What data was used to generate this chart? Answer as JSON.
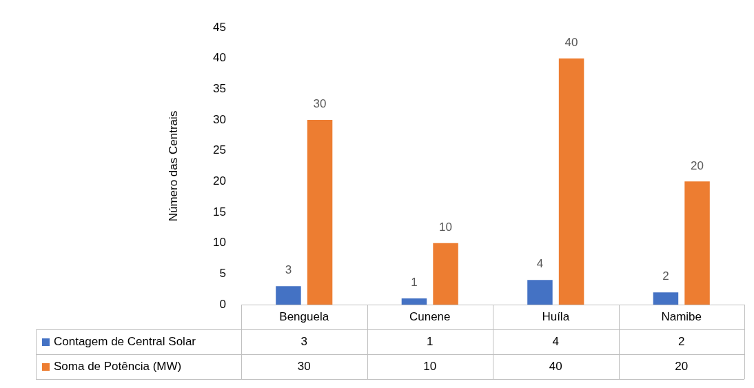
{
  "chart_data": {
    "type": "bar",
    "ylabel": "Número das Centrais",
    "categories": [
      "Benguela",
      "Cunene",
      "Huíla",
      "Namibe"
    ],
    "series": [
      {
        "name": "Contagem de Central Solar",
        "color": "#4472c4",
        "values": [
          3,
          1,
          4,
          2
        ]
      },
      {
        "name": "Soma de Potência (MW)",
        "color": "#ed7d31",
        "values": [
          30,
          10,
          40,
          20
        ]
      }
    ],
    "ylim": [
      0,
      45
    ],
    "yticks": [
      0,
      5,
      10,
      15,
      20,
      25,
      30,
      35,
      40,
      45
    ],
    "grid": false,
    "legend": "bottom",
    "data_labels": true,
    "annotations": [
      {
        "text": "3",
        "x": "Benguela",
        "y": 3
      },
      {
        "text": "1",
        "x": "Cunene",
        "y": 1
      },
      {
        "text": "4",
        "x": "Huíla",
        "y": 4
      },
      {
        "text": "2",
        "x": "Namibe",
        "y": 2
      },
      {
        "text": "30",
        "x": "Benguela",
        "y": 30
      },
      {
        "text": "10",
        "x": "Cunene",
        "y": 10
      },
      {
        "text": "40",
        "x": "Huíla",
        "y": 40
      },
      {
        "text": "20",
        "x": "Namibe",
        "y": 20
      }
    ]
  }
}
